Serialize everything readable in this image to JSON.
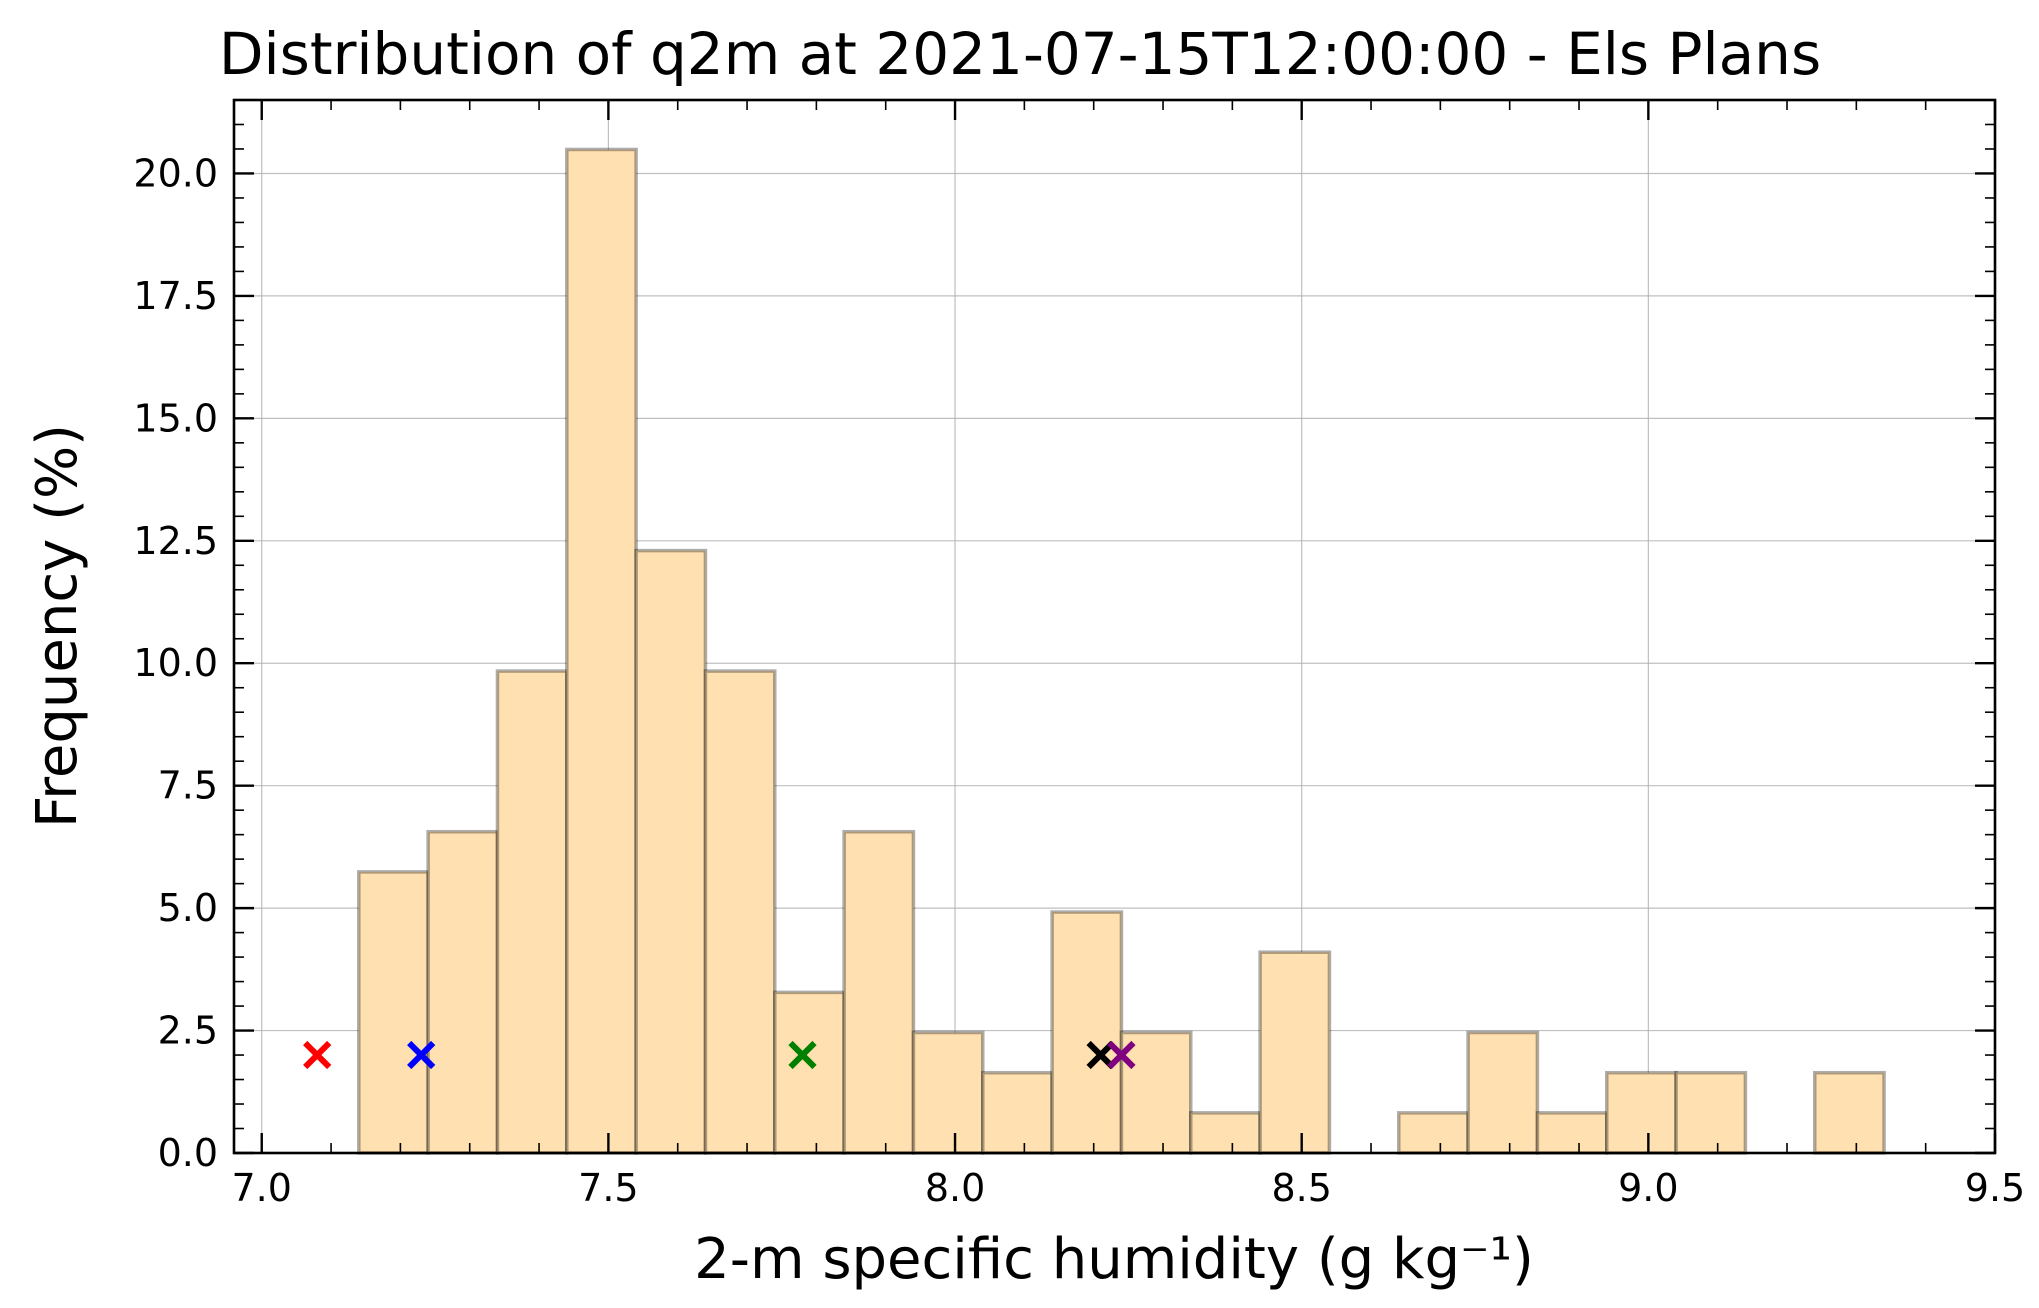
{
  "chart_data": {
    "type": "bar",
    "title": "Distribution of q2m at 2021-07-15T12:00:00 - Els Plans",
    "xlabel": "2-m specific humidity (g kg⁻¹)",
    "ylabel": "Frequency (%)",
    "xlim": [
      6.96,
      9.5
    ],
    "ylim": [
      0.0,
      21.5
    ],
    "xticks": [
      "7.0",
      "7.5",
      "8.0",
      "8.5",
      "9.0",
      "9.5"
    ],
    "yticks": [
      "0.0",
      "2.5",
      "5.0",
      "7.5",
      "10.0",
      "12.5",
      "15.0",
      "17.5",
      "20.0"
    ],
    "grid": true,
    "bar_color": "#ffe0b0",
    "bins": [
      {
        "x0": 7.14,
        "x1": 7.24,
        "value": 5.74
      },
      {
        "x0": 7.24,
        "x1": 7.34,
        "value": 6.56
      },
      {
        "x0": 7.34,
        "x1": 7.44,
        "value": 9.84
      },
      {
        "x0": 7.44,
        "x1": 7.54,
        "value": 20.49
      },
      {
        "x0": 7.54,
        "x1": 7.64,
        "value": 12.3
      },
      {
        "x0": 7.64,
        "x1": 7.74,
        "value": 9.84
      },
      {
        "x0": 7.74,
        "x1": 7.84,
        "value": 3.28
      },
      {
        "x0": 7.84,
        "x1": 7.94,
        "value": 6.56
      },
      {
        "x0": 7.94,
        "x1": 8.04,
        "value": 2.46
      },
      {
        "x0": 8.04,
        "x1": 8.14,
        "value": 1.64
      },
      {
        "x0": 8.14,
        "x1": 8.24,
        "value": 4.92
      },
      {
        "x0": 8.24,
        "x1": 8.34,
        "value": 2.46
      },
      {
        "x0": 8.34,
        "x1": 8.44,
        "value": 0.82
      },
      {
        "x0": 8.44,
        "x1": 8.54,
        "value": 4.1
      },
      {
        "x0": 8.64,
        "x1": 8.74,
        "value": 0.82
      },
      {
        "x0": 8.74,
        "x1": 8.84,
        "value": 2.46
      },
      {
        "x0": 8.84,
        "x1": 8.94,
        "value": 0.82
      },
      {
        "x0": 8.94,
        "x1": 9.04,
        "value": 1.64
      },
      {
        "x0": 9.04,
        "x1": 9.14,
        "value": 1.64
      },
      {
        "x0": 9.24,
        "x1": 9.34,
        "value": 1.64
      }
    ],
    "markers": [
      {
        "x": 7.08,
        "y": 2.0,
        "color": "#ff0000"
      },
      {
        "x": 7.23,
        "y": 2.0,
        "color": "#0000ff"
      },
      {
        "x": 7.78,
        "y": 2.0,
        "color": "#008000"
      },
      {
        "x": 8.21,
        "y": 2.0,
        "color": "#000000"
      },
      {
        "x": 8.24,
        "y": 2.0,
        "color": "#800080"
      }
    ]
  }
}
